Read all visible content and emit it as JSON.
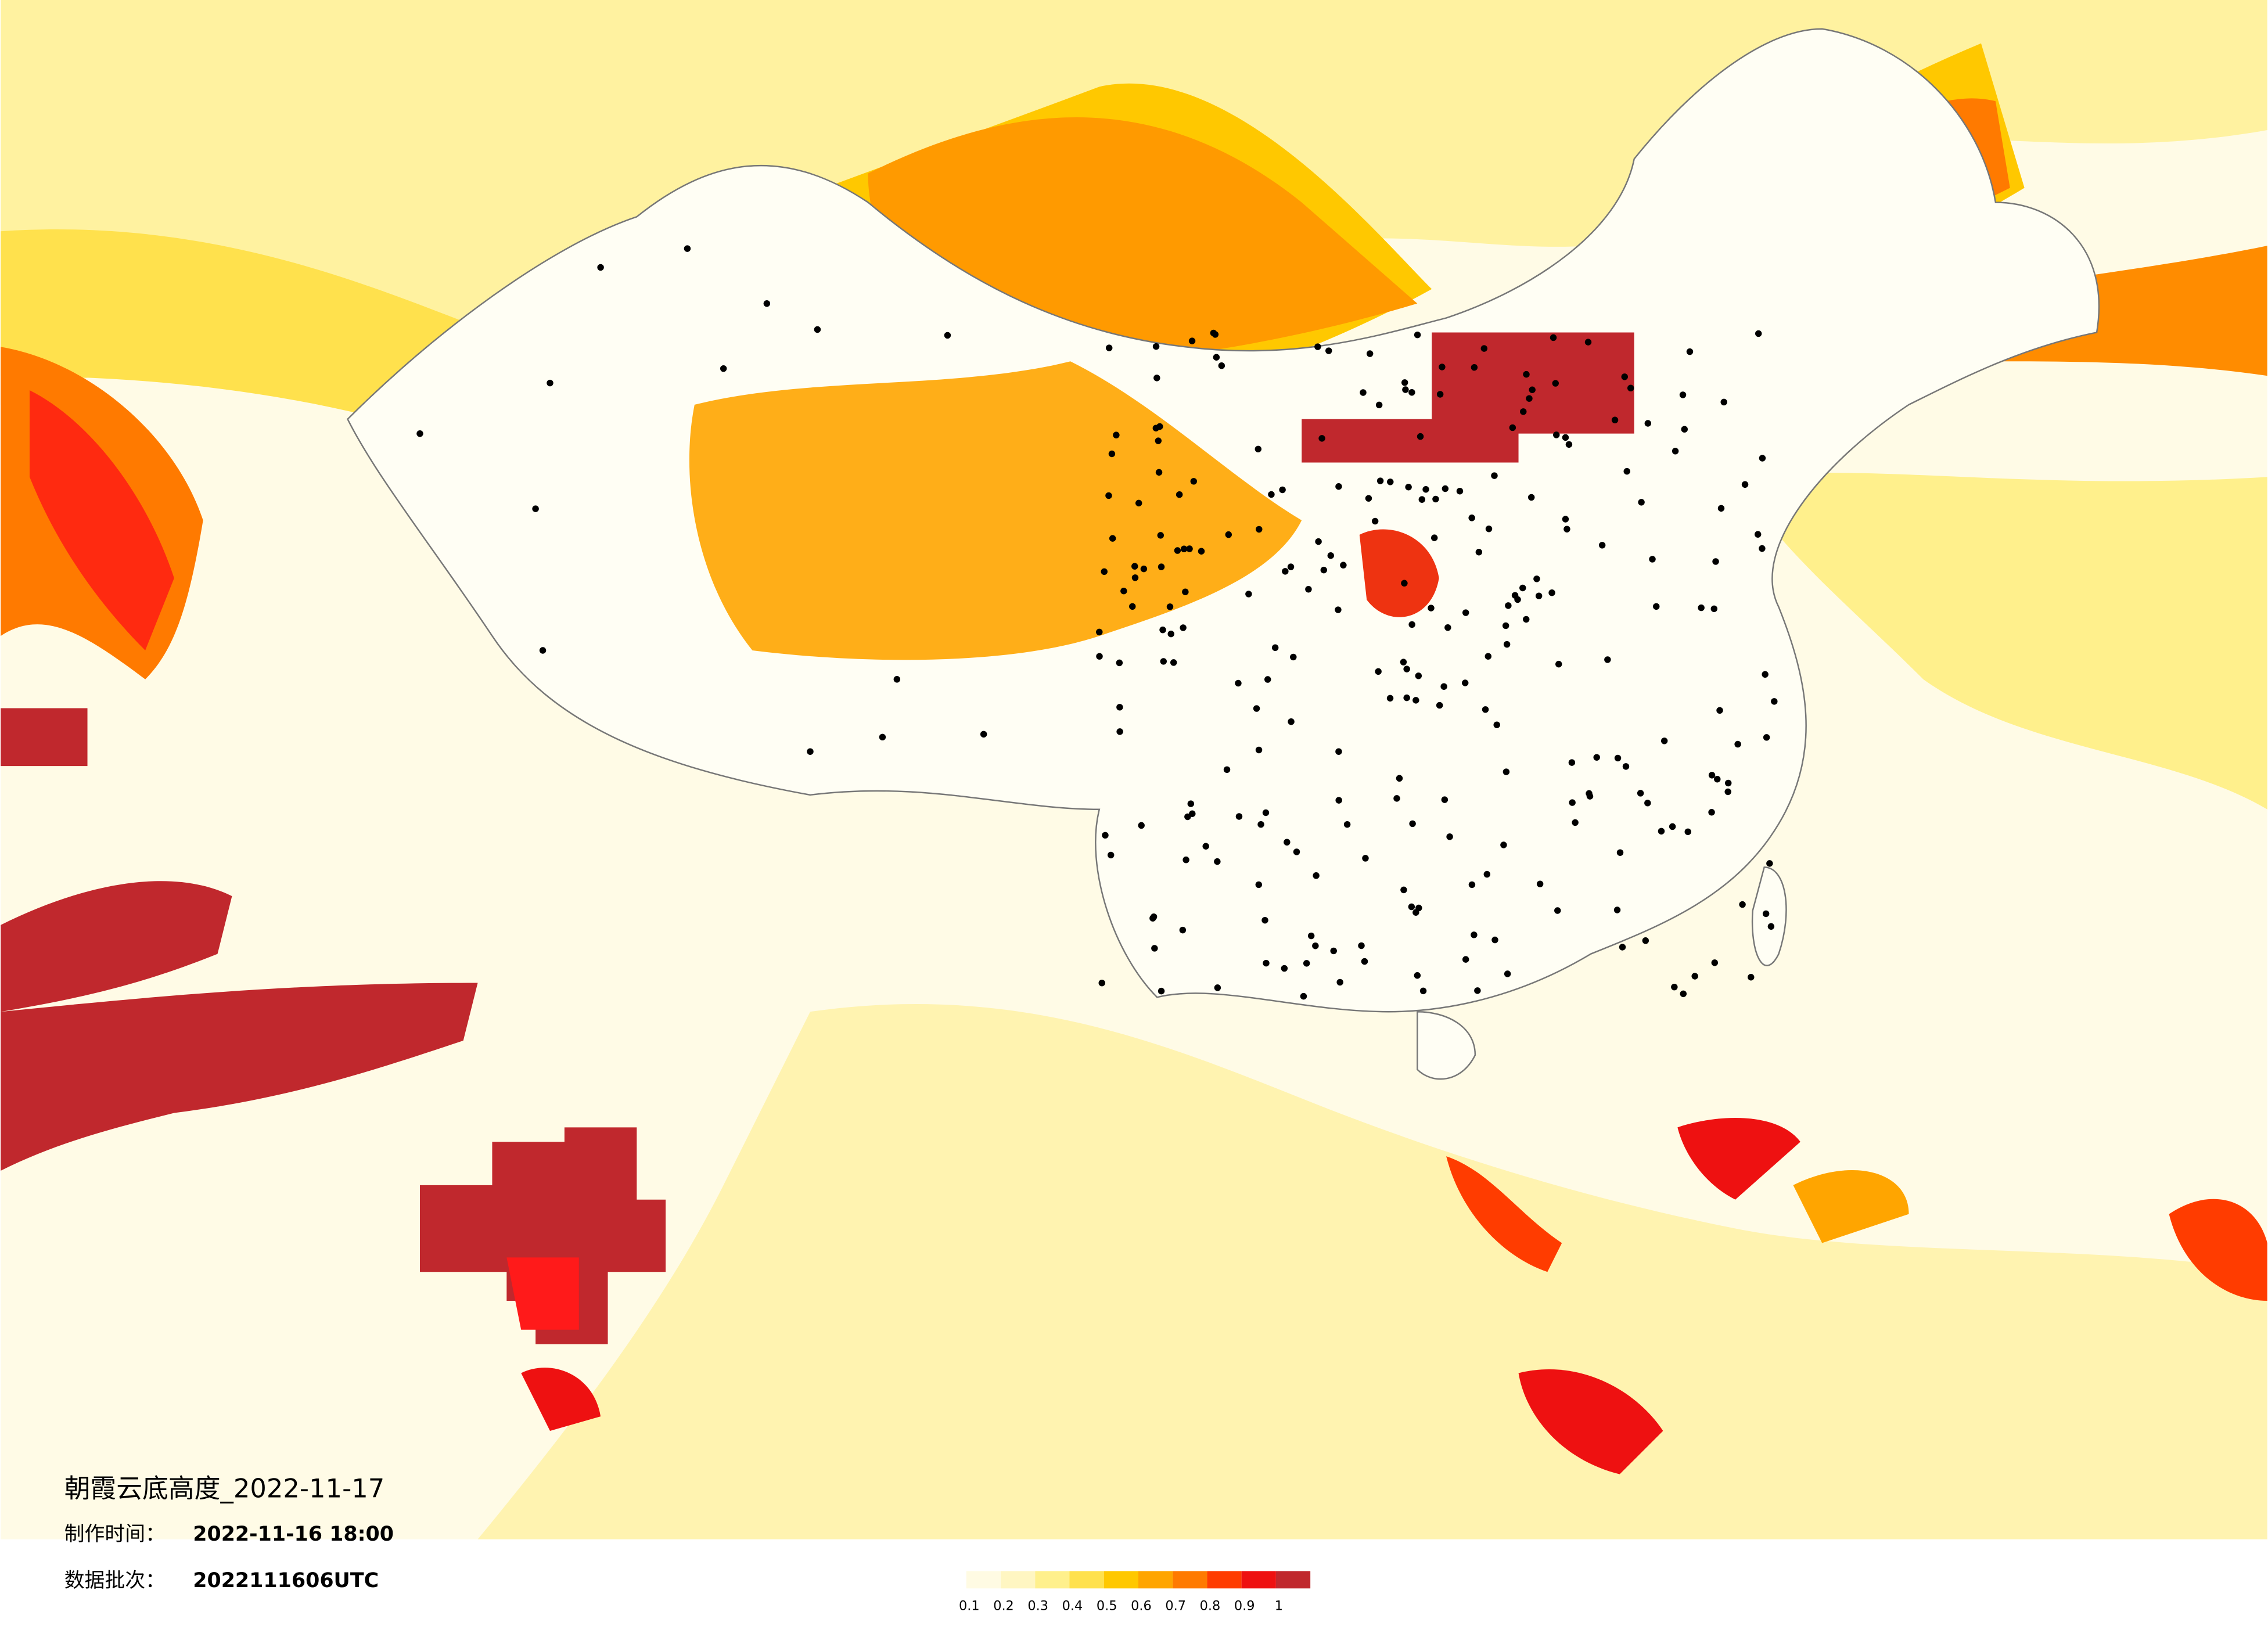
{
  "header": {
    "title": "朝霞云底高度_2022-11-17",
    "made_label": "制作时间：",
    "made_value": "2022-11-16 18:00",
    "batch_label": "数据批次：",
    "batch_value": "2022111606UTC"
  },
  "legend": {
    "ticks": [
      0.1,
      0.2,
      0.3,
      0.4,
      0.5,
      0.6,
      0.7,
      0.8,
      0.9,
      1
    ],
    "colors": [
      "#fffbe3",
      "#fff6c2",
      "#fff08c",
      "#ffe14d",
      "#ffc800",
      "#ffa500",
      "#ff7a00",
      "#ff3c00",
      "#ee1111",
      "#c0282d"
    ]
  }
}
